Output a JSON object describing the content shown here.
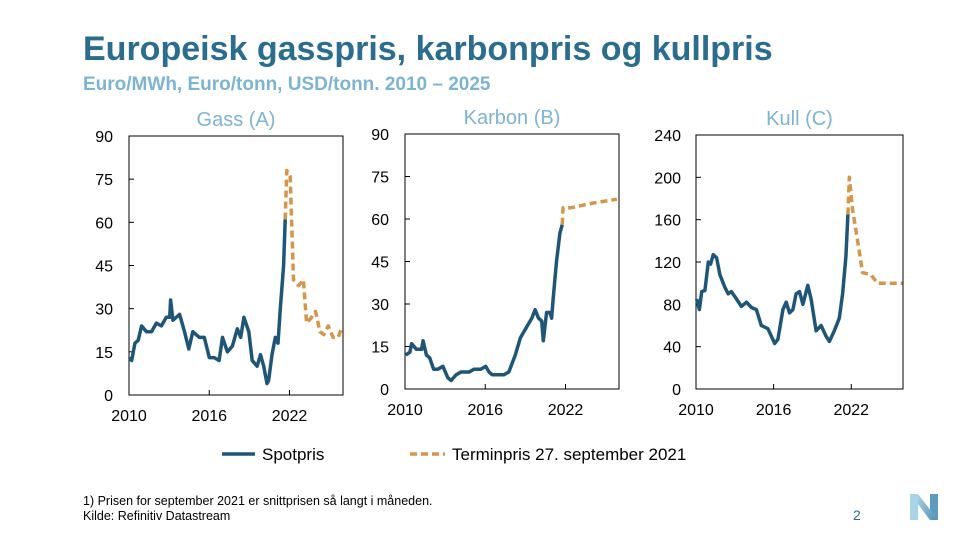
{
  "title": "Europeisk gasspris, karbonpris og kullpris",
  "subtitle": "Euro/MWh, Euro/tonn, USD/tonn. 2010 – 2025",
  "legend": {
    "spot": "Spotpris",
    "forward": "Terminpris 27. september 2021"
  },
  "footnote": "1) Prisen for september 2021 er snittprisen så langt i måneden.",
  "source": "Kilde: Refinitiv Datastream",
  "page_number": "2",
  "colors": {
    "title": "#2b6d8f",
    "panel_title": "#7db4d2",
    "spot": "#1f5677",
    "forward": "#d4964a"
  },
  "chart_data": [
    {
      "type": "line",
      "title": "Gass (A)",
      "xlim": [
        2010,
        2026
      ],
      "ylim": [
        0,
        90
      ],
      "xticks": [
        "2010",
        "2016",
        "2022"
      ],
      "yticks": [
        "0",
        "15",
        "30",
        "45",
        "60",
        "75",
        "90"
      ],
      "grid": false,
      "series": [
        {
          "name": "Spotpris",
          "style": "solid",
          "x": [
            2010.02,
            2010.2,
            2010.44,
            2010.69,
            2010.94,
            2011.31,
            2011.68,
            2012.05,
            2012.42,
            2012.79,
            2013.04,
            2013.11,
            2013.28,
            2013.78,
            2014.15,
            2014.47,
            2014.77,
            2015.26,
            2015.63,
            2016.0,
            2016.37,
            2016.74,
            2016.99,
            2017.36,
            2017.73,
            2018.1,
            2018.35,
            2018.59,
            2018.96,
            2019.21,
            2019.58,
            2019.83,
            2020.07,
            2020.32,
            2020.44,
            2020.69,
            2020.94,
            2021.14,
            2021.31,
            2021.56,
            2021.68
          ],
          "y": [
            13,
            12,
            18,
            19,
            24,
            22,
            22,
            25,
            24,
            27,
            27,
            33,
            26,
            28,
            22,
            16,
            22,
            20,
            20,
            13,
            13,
            12,
            20,
            15,
            17,
            23,
            20,
            27,
            22,
            12,
            10,
            14,
            10,
            4,
            5,
            14,
            20,
            18,
            30,
            45,
            61
          ]
        },
        {
          "name": "Terminpris 27. september 2021",
          "style": "dashed",
          "x": [
            2021.68,
            2021.8,
            2022.05,
            2022.3,
            2022.67,
            2023.04,
            2023.28,
            2023.65,
            2023.95,
            2024.27,
            2024.57,
            2024.89,
            2025.26,
            2025.63,
            2025.88
          ],
          "y": [
            61,
            78,
            76,
            40,
            38,
            40,
            25,
            27,
            29,
            22,
            21,
            24,
            20,
            20,
            23
          ]
        }
      ]
    },
    {
      "type": "line",
      "title": "Karbon (B)",
      "xlim": [
        2010,
        2026
      ],
      "ylim": [
        0,
        90
      ],
      "xticks": [
        "2010",
        "2016",
        "2022"
      ],
      "yticks": [
        "0",
        "15",
        "30",
        "45",
        "60",
        "75",
        "90"
      ],
      "grid": false,
      "series": [
        {
          "name": "Spotpris",
          "style": "solid",
          "x": [
            2010.05,
            2010.37,
            2010.49,
            2010.86,
            2011.23,
            2011.35,
            2011.6,
            2011.85,
            2012.14,
            2012.46,
            2012.83,
            2013.2,
            2013.45,
            2013.82,
            2014.19,
            2014.51,
            2014.8,
            2015.17,
            2015.67,
            2016.03,
            2016.28,
            2016.53,
            2017.02,
            2017.39,
            2017.76,
            2018.25,
            2018.62,
            2018.87,
            2019.11,
            2019.48,
            2019.73,
            2019.98,
            2020.22,
            2020.34,
            2020.59,
            2020.84,
            2020.96,
            2021.08,
            2021.33,
            2021.58,
            2021.75
          ],
          "y": [
            12,
            13,
            16,
            14,
            14,
            17,
            12,
            11,
            7,
            7,
            8,
            4,
            3,
            5,
            6,
            6,
            6,
            7,
            7,
            8,
            6,
            5,
            5,
            5,
            6,
            12,
            18,
            20,
            22,
            25,
            28,
            25,
            24,
            17,
            27,
            27,
            25,
            32,
            45,
            55,
            58
          ]
        },
        {
          "name": "Terminpris 27. september 2021",
          "style": "dashed",
          "x": [
            2021.75,
            2021.82,
            2022.44,
            2023.92,
            2025.84
          ],
          "y": [
            58,
            64,
            64,
            65.5,
            67
          ]
        }
      ]
    },
    {
      "type": "line",
      "title": "Kull (C)",
      "xlim": [
        2010,
        2026
      ],
      "ylim": [
        0,
        240
      ],
      "xticks": [
        "2010",
        "2016",
        "2022"
      ],
      "yticks": [
        "0",
        "40",
        "80",
        "120",
        "160",
        "200",
        "240"
      ],
      "grid": false,
      "series": [
        {
          "name": "Spotpris",
          "style": "solid",
          "x": [
            2010.05,
            2010.26,
            2010.44,
            2010.69,
            2010.95,
            2011.13,
            2011.33,
            2011.59,
            2011.85,
            2012.23,
            2012.49,
            2012.74,
            2013.13,
            2013.51,
            2013.9,
            2014.28,
            2014.67,
            2015.05,
            2015.56,
            2016.08,
            2016.33,
            2016.72,
            2016.97,
            2017.23,
            2017.49,
            2017.74,
            2018.0,
            2018.26,
            2018.64,
            2018.9,
            2019.28,
            2019.67,
            2020.05,
            2020.31,
            2020.69,
            2021.08,
            2021.33,
            2021.59,
            2021.74
          ],
          "y": [
            85,
            75,
            92,
            93,
            120,
            118,
            127,
            124,
            108,
            96,
            90,
            92,
            85,
            78,
            82,
            77,
            75,
            60,
            57,
            43,
            47,
            75,
            82,
            72,
            75,
            90,
            92,
            80,
            98,
            85,
            55,
            60,
            50,
            45,
            55,
            67,
            90,
            125,
            165
          ]
        },
        {
          "name": "Terminpris 27. september 2021",
          "style": "dashed",
          "x": [
            2021.74,
            2021.85,
            2022.1,
            2022.49,
            2022.87,
            2023.51,
            2024.03,
            2024.92,
            2025.95
          ],
          "y": [
            165,
            200,
            170,
            140,
            110,
            108,
            100,
            100,
            100
          ]
        }
      ]
    }
  ]
}
